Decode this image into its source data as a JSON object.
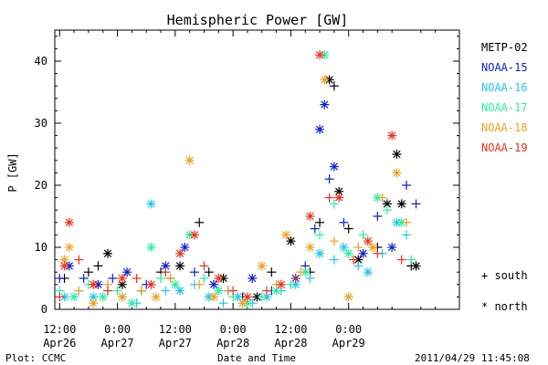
{
  "page": {
    "footer_left": "Plot: CCMC",
    "footer_center": "Date and Time",
    "footer_right": "2011/04/29 11:45:08"
  },
  "chart_data": {
    "type": "scatter",
    "title": "Hemispheric Power [GW]",
    "xlabel": "Date and Time",
    "ylabel": "P [GW]",
    "x_unit": "hours since 2011-04-26 12:00",
    "xlim": [
      -1,
      83
    ],
    "ylim": [
      0,
      45
    ],
    "y_ticks": [
      0,
      10,
      20,
      30,
      40
    ],
    "x_ticks": [
      {
        "x": 0,
        "time": "12:00",
        "date": "Apr26"
      },
      {
        "x": 12,
        "time": "0:00",
        "date": "Apr27"
      },
      {
        "x": 24,
        "time": "12:00",
        "date": "Apr27"
      },
      {
        "x": 36,
        "time": "0:00",
        "date": "Apr28"
      },
      {
        "x": 48,
        "time": "12:00",
        "date": "Apr28"
      },
      {
        "x": 60,
        "time": "0:00",
        "date": "Apr29"
      }
    ],
    "grid": false,
    "legend_position": "right",
    "marker_legend": [
      {
        "symbol": "+",
        "label": "south"
      },
      {
        "symbol": "*",
        "label": "north"
      }
    ],
    "series": [
      {
        "name": "METP-02",
        "color": "#000000",
        "points": [
          [
            1,
            5,
            "+"
          ],
          [
            6,
            6,
            "+"
          ],
          [
            8,
            7,
            "+"
          ],
          [
            10,
            9,
            "*"
          ],
          [
            13,
            4,
            "*"
          ],
          [
            17,
            3,
            "+"
          ],
          [
            21,
            6,
            "+"
          ],
          [
            23,
            5,
            "+"
          ],
          [
            25,
            7,
            "*"
          ],
          [
            29,
            14,
            "+"
          ],
          [
            31,
            6,
            "+"
          ],
          [
            34,
            5,
            "*"
          ],
          [
            38,
            2,
            "+"
          ],
          [
            41,
            2,
            "*"
          ],
          [
            44,
            6,
            "+"
          ],
          [
            48,
            11,
            "*"
          ],
          [
            52,
            6,
            "+"
          ],
          [
            54,
            14,
            "+"
          ],
          [
            56,
            37,
            "*"
          ],
          [
            57,
            36,
            "+"
          ],
          [
            58,
            19,
            "*"
          ],
          [
            60,
            13,
            "+"
          ],
          [
            62,
            8,
            "*"
          ],
          [
            66,
            10,
            "+"
          ],
          [
            68,
            17,
            "*"
          ],
          [
            70,
            25,
            "*"
          ],
          [
            71,
            17,
            "*"
          ],
          [
            73,
            7,
            "+"
          ],
          [
            74,
            7,
            "*"
          ]
        ]
      },
      {
        "name": "NOAA-15",
        "color": "#0a1fd0",
        "points": [
          [
            0,
            5,
            "+"
          ],
          [
            2,
            7,
            "*"
          ],
          [
            5,
            5,
            "+"
          ],
          [
            8,
            4,
            "*"
          ],
          [
            11,
            5,
            "+"
          ],
          [
            14,
            6,
            "*"
          ],
          [
            18,
            4,
            "+"
          ],
          [
            22,
            7,
            "*"
          ],
          [
            26,
            10,
            "*"
          ],
          [
            28,
            6,
            "+"
          ],
          [
            32,
            4,
            "*"
          ],
          [
            35,
            3,
            "+"
          ],
          [
            40,
            5,
            "*"
          ],
          [
            44,
            3,
            "+"
          ],
          [
            49,
            5,
            "*"
          ],
          [
            51,
            7,
            "+"
          ],
          [
            53,
            13,
            "+"
          ],
          [
            54,
            29,
            "*"
          ],
          [
            55,
            33,
            "*"
          ],
          [
            56,
            21,
            "+"
          ],
          [
            57,
            23,
            "*"
          ],
          [
            59,
            14,
            "+"
          ],
          [
            63,
            9,
            "*"
          ],
          [
            66,
            15,
            "+"
          ],
          [
            69,
            10,
            "*"
          ],
          [
            72,
            20,
            "+"
          ],
          [
            74,
            17,
            "+"
          ]
        ]
      },
      {
        "name": "NOAA-16",
        "color": "#1fc6f0",
        "points": [
          [
            1,
            2,
            "*"
          ],
          [
            4,
            3,
            "+"
          ],
          [
            7,
            2,
            "*"
          ],
          [
            10,
            3,
            "+"
          ],
          [
            13,
            2,
            "*"
          ],
          [
            16,
            1,
            "+"
          ],
          [
            19,
            17,
            "*"
          ],
          [
            22,
            3,
            "+"
          ],
          [
            25,
            3,
            "*"
          ],
          [
            28,
            4,
            "+"
          ],
          [
            31,
            2,
            "*"
          ],
          [
            34,
            1,
            "+"
          ],
          [
            37,
            2,
            "*"
          ],
          [
            40,
            1,
            "+"
          ],
          [
            43,
            2,
            "*"
          ],
          [
            46,
            3,
            "+"
          ],
          [
            49,
            4,
            "*"
          ],
          [
            52,
            5,
            "+"
          ],
          [
            54,
            9,
            "*"
          ],
          [
            57,
            8,
            "+"
          ],
          [
            59,
            10,
            "*"
          ],
          [
            62,
            7,
            "+"
          ],
          [
            64,
            6,
            "*"
          ],
          [
            67,
            9,
            "+"
          ],
          [
            70,
            14,
            "*"
          ],
          [
            72,
            12,
            "+"
          ]
        ]
      },
      {
        "name": "NOAA-17",
        "color": "#25f0a0",
        "points": [
          [
            0,
            3,
            "+"
          ],
          [
            3,
            2,
            "*"
          ],
          [
            6,
            4,
            "+"
          ],
          [
            9,
            2,
            "*"
          ],
          [
            12,
            3,
            "+"
          ],
          [
            15,
            1,
            "*"
          ],
          [
            19,
            10,
            "*"
          ],
          [
            21,
            5,
            "+"
          ],
          [
            24,
            4,
            "*"
          ],
          [
            27,
            12,
            "*"
          ],
          [
            30,
            5,
            "+"
          ],
          [
            33,
            3,
            "*"
          ],
          [
            36,
            2,
            "+"
          ],
          [
            39,
            1,
            "*"
          ],
          [
            42,
            2,
            "+"
          ],
          [
            45,
            3,
            "*"
          ],
          [
            48,
            4,
            "+"
          ],
          [
            51,
            6,
            "*"
          ],
          [
            54,
            12,
            "+"
          ],
          [
            55,
            41,
            "*"
          ],
          [
            57,
            17,
            "+"
          ],
          [
            60,
            9,
            "*"
          ],
          [
            63,
            12,
            "+"
          ],
          [
            66,
            18,
            "*"
          ],
          [
            68,
            16,
            "+"
          ],
          [
            71,
            14,
            "*"
          ],
          [
            73,
            8,
            "+"
          ]
        ]
      },
      {
        "name": "NOAA-18",
        "color": "#f0a020",
        "points": [
          [
            1,
            8,
            "*"
          ],
          [
            2,
            10,
            "*"
          ],
          [
            4,
            3,
            "+"
          ],
          [
            7,
            1,
            "*"
          ],
          [
            10,
            4,
            "+"
          ],
          [
            13,
            2,
            "*"
          ],
          [
            17,
            3,
            "+"
          ],
          [
            20,
            2,
            "*"
          ],
          [
            23,
            5,
            "+"
          ],
          [
            27,
            24,
            "*"
          ],
          [
            29,
            4,
            "+"
          ],
          [
            32,
            2,
            "*"
          ],
          [
            35,
            3,
            "+"
          ],
          [
            38,
            1,
            "*"
          ],
          [
            42,
            7,
            "*"
          ],
          [
            45,
            4,
            "+"
          ],
          [
            47,
            12,
            "*"
          ],
          [
            50,
            6,
            "+"
          ],
          [
            52,
            10,
            "*"
          ],
          [
            55,
            37,
            "*"
          ],
          [
            57,
            11,
            "+"
          ],
          [
            60,
            2,
            "*"
          ],
          [
            62,
            10,
            "+"
          ],
          [
            65,
            10,
            "*"
          ],
          [
            67,
            18,
            "+"
          ],
          [
            70,
            22,
            "*"
          ],
          [
            72,
            14,
            "+"
          ]
        ]
      },
      {
        "name": "NOAA-19",
        "color": "#f03018",
        "points": [
          [
            0,
            2,
            "+"
          ],
          [
            1,
            7,
            "*"
          ],
          [
            2,
            14,
            "*"
          ],
          [
            4,
            8,
            "+"
          ],
          [
            7,
            4,
            "*"
          ],
          [
            10,
            3,
            "+"
          ],
          [
            13,
            5,
            "*"
          ],
          [
            16,
            5,
            "+"
          ],
          [
            19,
            4,
            "*"
          ],
          [
            22,
            6,
            "+"
          ],
          [
            25,
            9,
            "*"
          ],
          [
            28,
            12,
            "*"
          ],
          [
            30,
            7,
            "+"
          ],
          [
            33,
            5,
            "*"
          ],
          [
            36,
            3,
            "+"
          ],
          [
            39,
            2,
            "*"
          ],
          [
            43,
            3,
            "+"
          ],
          [
            46,
            4,
            "*"
          ],
          [
            49,
            5,
            "+"
          ],
          [
            52,
            15,
            "*"
          ],
          [
            54,
            41,
            "*"
          ],
          [
            56,
            18,
            "+"
          ],
          [
            58,
            18,
            "*"
          ],
          [
            61,
            8,
            "+"
          ],
          [
            64,
            11,
            "*"
          ],
          [
            66,
            9,
            "+"
          ],
          [
            69,
            28,
            "*"
          ],
          [
            71,
            8,
            "+"
          ]
        ]
      }
    ]
  }
}
